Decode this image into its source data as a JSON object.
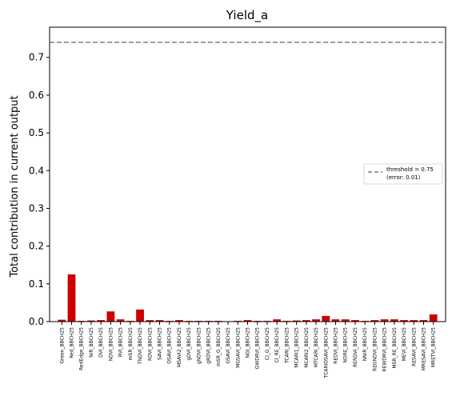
{
  "chart_data": {
    "type": "bar",
    "title": "Yield_a",
    "xlabel": "",
    "ylabel": "Total contribution in current output",
    "ylim": [
      0,
      0.78
    ],
    "yticks": [
      "0.0",
      "0.1",
      "0.2",
      "0.3",
      "0.4",
      "0.5",
      "0.6",
      "0.7"
    ],
    "grid": false,
    "legend_position": "right",
    "bar_color": "#cc0000",
    "threshold_color": "#808080",
    "threshold": 0.74,
    "legend": {
      "line1": "threshold = 0.75",
      "line2": "(error: 0.01)"
    },
    "categories": [
      "Green_BBCH25",
      "Red_BBCH25",
      "RedEdge_BBCH25",
      "NIR_BBCH25",
      "DVI_BBCH25",
      "NDVI_BBCH25",
      "RVI_BBCH25",
      "mSR_BBCH25",
      "TNDVI_BBCH25",
      "RDVI_BBCH25",
      "SAVI_BBCH25",
      "OSAVI_BBCH25",
      "MSAVI2_BBCH25",
      "gDVI_BBCH25",
      "gNDVI_BBCH25",
      "gRDVI_BBCH25",
      "mSR_G_BBCH25",
      "GSAVI_BBCH25",
      "MGSAVI_BBCH25",
      "NGI_BBCH25",
      "GWDRVI_BBCH25",
      "CI_G_BBCH25",
      "CI_RE_BBCH25",
      "TCARI_BBCH25",
      "MCARI1_BBCH25",
      "MCARI2_BBCH25",
      "MTCARI_BBCH25",
      "TCARIOSAVI_BBCH25",
      "REDVI_BBCH25",
      "NDRE_BBCH25",
      "RERDVI_BBCH25",
      "NNIR_BBCH25",
      "REGNDVI_BBCH25",
      "REWDRVI_BBCH25",
      "MSR_RE_BBCH25",
      "MEVI_BBCH25",
      "RESAVI_BBCH25",
      "MRESAVI_BBCH25",
      "MRETVI_BBCH25"
    ],
    "values": [
      0.005,
      0.125,
      0.002,
      0.003,
      0.004,
      0.027,
      0.006,
      0.002,
      0.032,
      0.004,
      0.004,
      0.002,
      0.004,
      0.002,
      0.002,
      0.002,
      0.002,
      0.001,
      0.002,
      0.004,
      0.002,
      0.002,
      0.006,
      0.002,
      0.003,
      0.004,
      0.006,
      0.015,
      0.006,
      0.006,
      0.004,
      0.002,
      0.004,
      0.006,
      0.006,
      0.004,
      0.004,
      0.004,
      0.019
    ]
  }
}
